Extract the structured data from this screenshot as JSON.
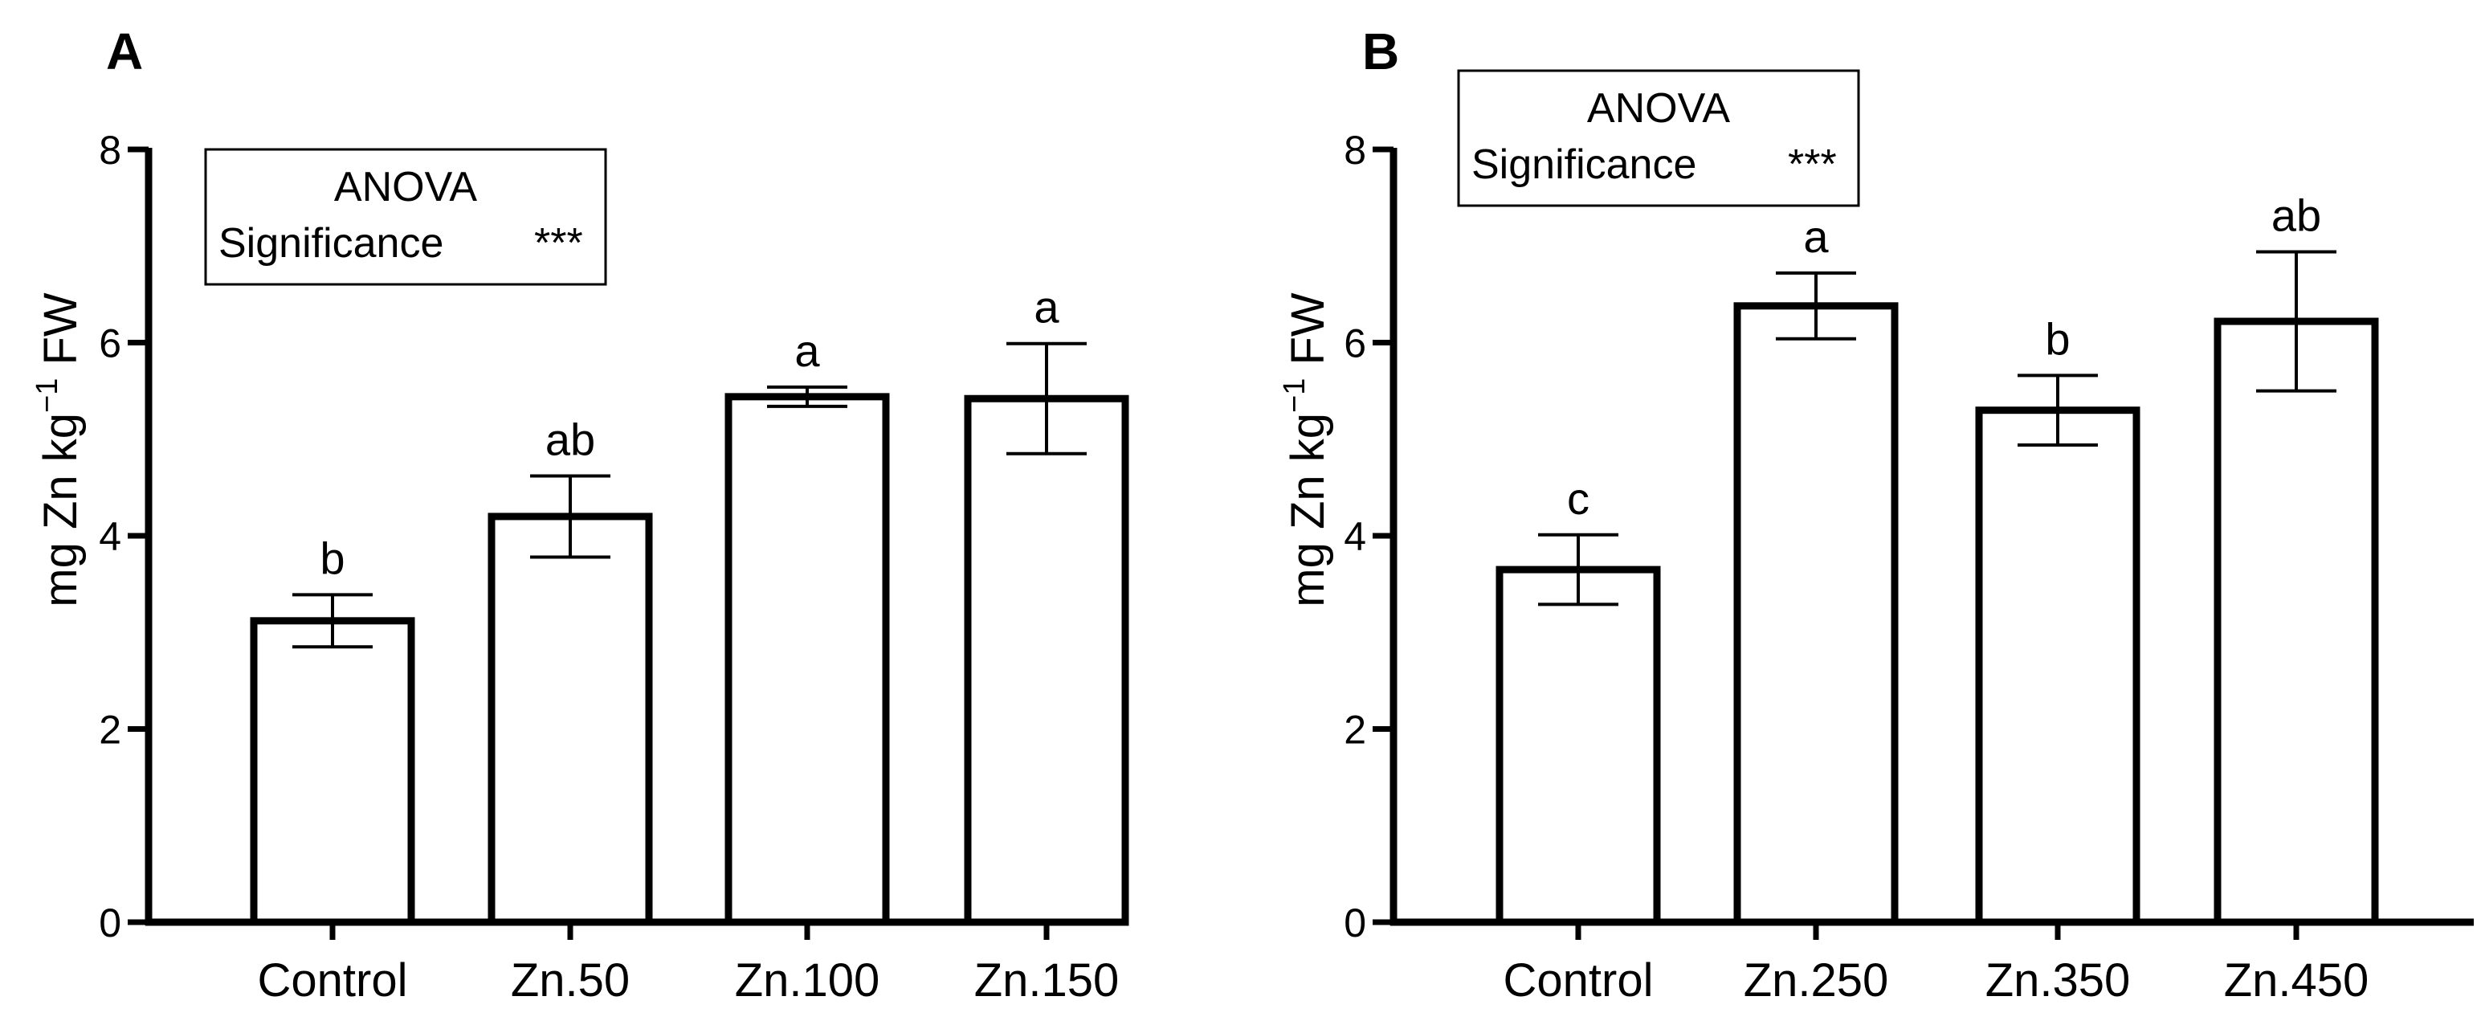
{
  "colors": {
    "bar_fill": "#ffffff",
    "stroke": "#000000"
  },
  "chart_data": [
    {
      "type": "bar",
      "panel": "A",
      "categories": [
        "Control",
        "Zn.50",
        "Zn.100",
        "Zn.150"
      ],
      "values": [
        3.12,
        4.2,
        5.44,
        5.42
      ],
      "errors": [
        0.27,
        0.42,
        0.1,
        0.57
      ],
      "significance_letters": [
        "b",
        "ab",
        "a",
        "a"
      ],
      "ylabel": {
        "main": "mg Zn kg",
        "sup": "−1",
        "tail": " FW"
      },
      "ylim": [
        0,
        8
      ],
      "yticks": [
        0,
        2,
        4,
        6,
        8
      ],
      "legend": {
        "line1": "ANOVA",
        "line2": "Significance",
        "stars": "***",
        "position": "top-left"
      }
    },
    {
      "type": "bar",
      "panel": "B",
      "categories": [
        "Control",
        "Zn.250",
        "Zn.350",
        "Zn.450"
      ],
      "values": [
        3.65,
        6.38,
        5.3,
        6.22
      ],
      "errors": [
        0.36,
        0.34,
        0.36,
        0.72
      ],
      "significance_letters": [
        "c",
        "a",
        "b",
        "ab"
      ],
      "ylabel": {
        "main": "mg Zn kg",
        "sup": "−1",
        "tail": " FW"
      },
      "ylim": [
        0,
        8
      ],
      "yticks": [
        0,
        2,
        4,
        6,
        8
      ],
      "legend": {
        "line1": "ANOVA",
        "line2": "Significance",
        "stars": "***",
        "position": "top-left"
      }
    }
  ]
}
